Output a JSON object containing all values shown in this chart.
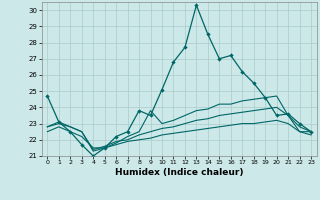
{
  "xlabel": "Humidex (Indice chaleur)",
  "xlim": [
    -0.5,
    23.5
  ],
  "ylim": [
    21,
    30.5
  ],
  "yticks": [
    21,
    22,
    23,
    24,
    25,
    26,
    27,
    28,
    29,
    30
  ],
  "xticks": [
    0,
    1,
    2,
    3,
    4,
    5,
    6,
    7,
    8,
    9,
    10,
    11,
    12,
    13,
    14,
    15,
    16,
    17,
    18,
    19,
    20,
    21,
    22,
    23
  ],
  "bg_color": "#cce8e8",
  "grid_color": "#aacccc",
  "line_color": "#006666",
  "line1": [
    24.7,
    23.1,
    22.5,
    21.7,
    21.0,
    21.5,
    22.2,
    22.5,
    23.8,
    23.5,
    25.1,
    26.8,
    27.7,
    30.3,
    28.5,
    27.0,
    27.2,
    26.2,
    25.5,
    24.6,
    23.5,
    23.6,
    23.0,
    22.5
  ],
  "line2": [
    22.8,
    23.1,
    22.8,
    22.5,
    21.3,
    21.5,
    21.8,
    22.2,
    22.5,
    23.8,
    23.0,
    23.2,
    23.5,
    23.8,
    23.9,
    24.2,
    24.2,
    24.4,
    24.5,
    24.6,
    24.7,
    23.5,
    22.5,
    22.5
  ],
  "line3": [
    22.8,
    23.0,
    22.8,
    22.5,
    21.4,
    21.6,
    21.9,
    22.0,
    22.3,
    22.5,
    22.7,
    22.8,
    23.0,
    23.2,
    23.3,
    23.5,
    23.6,
    23.7,
    23.8,
    23.9,
    24.0,
    23.5,
    22.8,
    22.5
  ],
  "line4": [
    22.5,
    22.8,
    22.5,
    22.2,
    21.5,
    21.5,
    21.7,
    21.9,
    22.0,
    22.1,
    22.3,
    22.4,
    22.5,
    22.6,
    22.7,
    22.8,
    22.9,
    23.0,
    23.0,
    23.1,
    23.2,
    23.0,
    22.5,
    22.3
  ]
}
